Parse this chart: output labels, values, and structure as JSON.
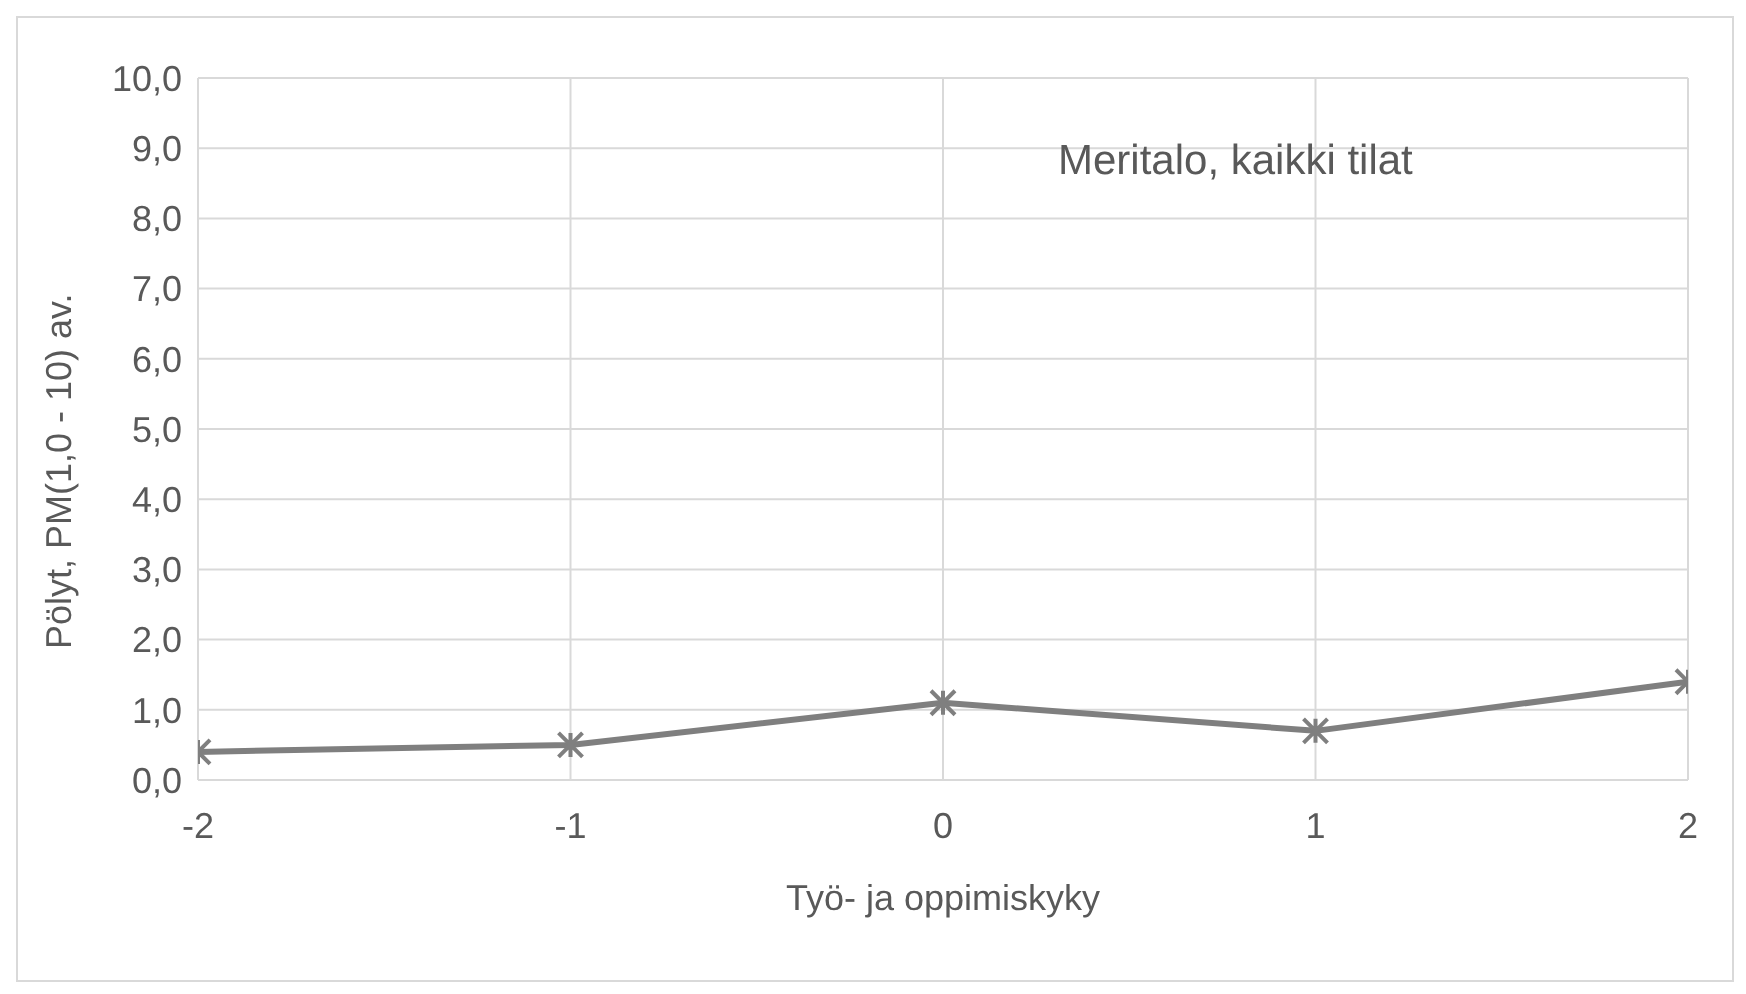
{
  "chart_data": {
    "type": "line",
    "title": "Meritalo, kaikki tilat",
    "xlabel": "Työ- ja oppimiskyky",
    "ylabel": "Pölyt, PM(1,0 - 10) av.",
    "x": [
      -2,
      -1,
      0,
      1,
      2
    ],
    "series": [
      {
        "color": "#7f7f7f",
        "values": [
          0.4,
          0.5,
          1.1,
          0.7,
          1.4
        ]
      }
    ],
    "xlim": [
      -2,
      2
    ],
    "xticks": [
      -2,
      -1,
      0,
      1,
      2
    ],
    "ylim": [
      0,
      10
    ],
    "yticks": [
      {
        "value": 0,
        "label": "0,0"
      },
      {
        "value": 1,
        "label": "1,0"
      },
      {
        "value": 2,
        "label": "2,0"
      },
      {
        "value": 3,
        "label": "3,0"
      },
      {
        "value": 4,
        "label": "4,0"
      },
      {
        "value": 5,
        "label": "5,0"
      },
      {
        "value": 6,
        "label": "6,0"
      },
      {
        "value": 7,
        "label": "7,0"
      },
      {
        "value": 8,
        "label": "8,0"
      },
      {
        "value": 9,
        "label": "9,0"
      },
      {
        "value": 10,
        "label": "10,0"
      }
    ],
    "grid": true,
    "marker": "cross",
    "line_style": "solid"
  }
}
